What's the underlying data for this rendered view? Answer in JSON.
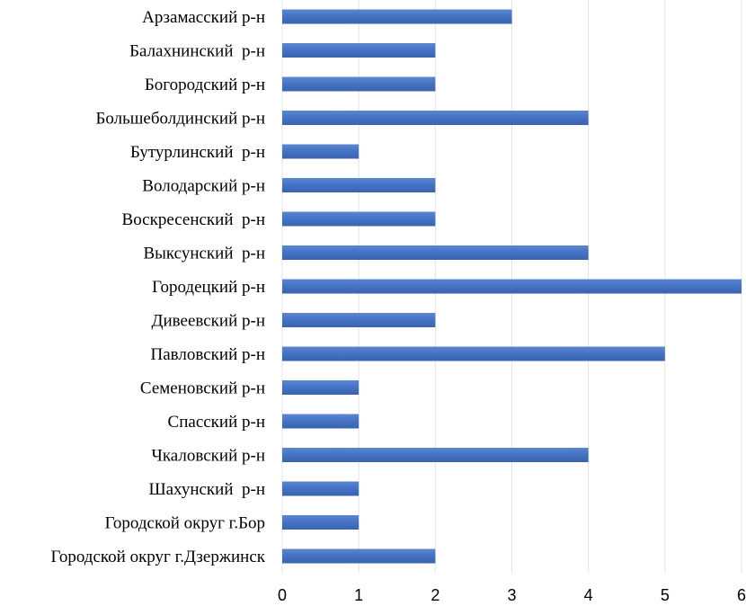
{
  "chart_data": {
    "type": "bar",
    "orientation": "horizontal",
    "title": "",
    "xlabel": "",
    "ylabel": "",
    "categories": [
      "Арзамасский р-н",
      "Балахнинский  р-н",
      "Богородский р-н",
      "Большеболдинский р-н",
      "Бутурлинский  р-н",
      "Володарский р-н",
      "Воскресенский  р-н",
      "Выксунский  р-н",
      "Городецкий р-н",
      "Дивеевский р-н",
      "Павловский р-н",
      "Семеновский р-н",
      "Спасский р-н",
      "Чкаловский р-н",
      "Шахунский  р-н",
      "Городской округ г.Бор",
      "Городской округ г.Дзержинск"
    ],
    "values": [
      3,
      2,
      2,
      4,
      1,
      2,
      2,
      4,
      6,
      2,
      5,
      1,
      1,
      4,
      1,
      1,
      2
    ],
    "xlim": [
      0,
      6
    ],
    "xticks": [
      "0",
      "1",
      "2",
      "3",
      "4",
      "5",
      "6"
    ],
    "grid": true,
    "legend": "none",
    "bar_color": "#4472C4"
  }
}
